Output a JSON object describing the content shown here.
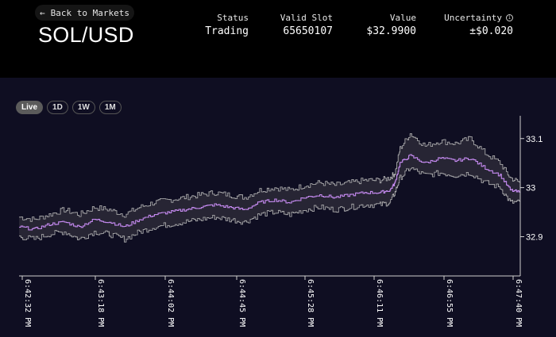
{
  "header": {
    "back_label": "Back to Markets",
    "title": "SOL/USD",
    "stats": [
      {
        "label": "Status",
        "value": "Trading"
      },
      {
        "label": "Valid Slot",
        "value": "65650107"
      },
      {
        "label": "Value",
        "value": "$32.9900"
      },
      {
        "label": "Uncertainty",
        "value": "±$0.020"
      }
    ]
  },
  "ranges": [
    {
      "label": "Live",
      "active": true
    },
    {
      "label": "1D",
      "active": false
    },
    {
      "label": "1W",
      "active": false
    },
    {
      "label": "1M",
      "active": false
    }
  ],
  "colors": {
    "price_line": "#c58af0",
    "band_line": "#b8b8b8",
    "band_fill": "#2a2836",
    "background": "#0f0e22"
  },
  "chart_data": {
    "type": "line",
    "x_ticks": [
      "6:42:32 PM",
      "6:43:18 PM",
      "6:44:02 PM",
      "6:44:45 PM",
      "6:45:28 PM",
      "6:46:11 PM",
      "6:46:55 PM",
      "6:47:40 PM"
    ],
    "y_ticks": [
      "32.9",
      "33",
      "33.1"
    ],
    "ylim": [
      32.82,
      33.14
    ],
    "series": [
      {
        "x": [
          0,
          0.03,
          0.06,
          0.09,
          0.12,
          0.15,
          0.18,
          0.21,
          0.24,
          0.27,
          0.3,
          0.33,
          0.36,
          0.39,
          0.42,
          0.45,
          0.48,
          0.51,
          0.54,
          0.57,
          0.6,
          0.63,
          0.66,
          0.69,
          0.72,
          0.74,
          0.75,
          0.76,
          0.78,
          0.81,
          0.84,
          0.87,
          0.9,
          0.93,
          0.96,
          0.98,
          1.0
        ],
        "values": [
          32.92,
          32.915,
          32.925,
          32.93,
          32.92,
          32.935,
          32.93,
          32.92,
          32.935,
          32.945,
          32.95,
          32.955,
          32.96,
          32.965,
          32.96,
          32.955,
          32.97,
          32.975,
          32.97,
          32.98,
          32.985,
          32.98,
          32.985,
          32.99,
          32.99,
          32.995,
          33.01,
          33.05,
          33.065,
          33.05,
          33.06,
          33.055,
          33.06,
          33.04,
          33.025,
          32.995,
          32.99
        ],
        "upper": [
          32.94,
          32.935,
          32.945,
          32.955,
          32.945,
          32.96,
          32.955,
          32.945,
          32.96,
          32.97,
          32.975,
          32.98,
          32.985,
          32.99,
          32.985,
          32.98,
          32.995,
          33.0,
          32.995,
          33.005,
          33.01,
          33.005,
          33.01,
          33.015,
          33.015,
          33.02,
          33.03,
          33.08,
          33.11,
          33.085,
          33.095,
          33.09,
          33.1,
          33.07,
          33.05,
          33.02,
          33.01
        ],
        "lower": [
          32.9,
          32.895,
          32.905,
          32.91,
          32.895,
          32.91,
          32.905,
          32.895,
          32.91,
          32.92,
          32.925,
          32.93,
          32.935,
          32.94,
          32.935,
          32.93,
          32.945,
          32.95,
          32.945,
          32.955,
          32.96,
          32.955,
          32.96,
          32.965,
          32.965,
          32.97,
          32.99,
          33.02,
          33.04,
          33.025,
          33.03,
          33.025,
          33.03,
          33.01,
          33.0,
          32.97,
          32.97
        ]
      }
    ]
  }
}
